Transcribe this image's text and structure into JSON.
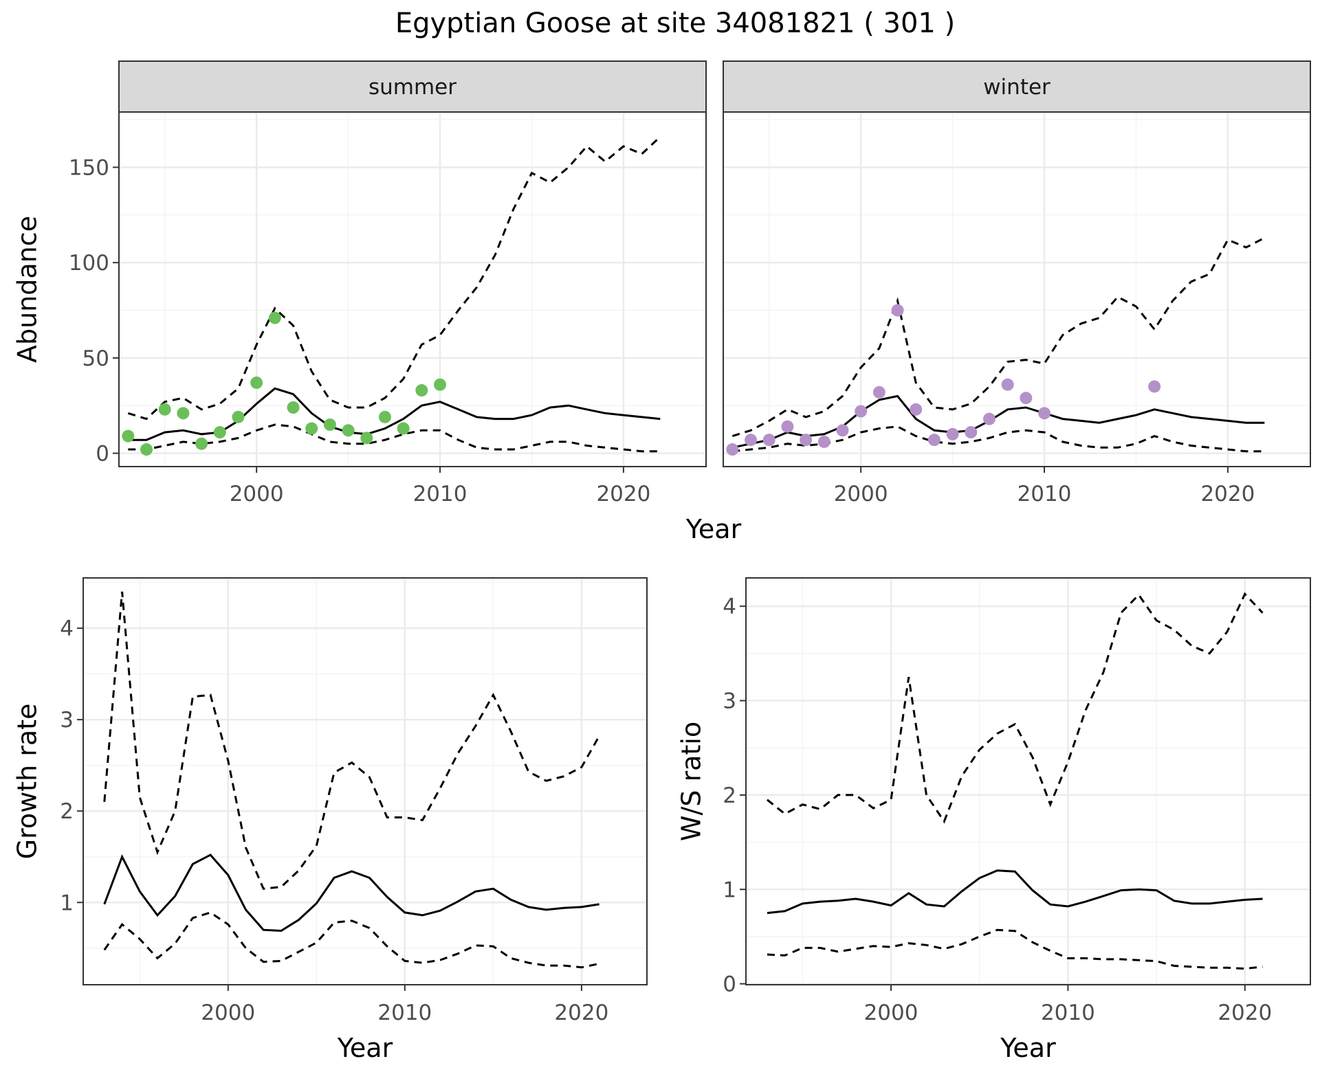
{
  "title": "Egyptian Goose at site 34081821 ( 301 )",
  "colors": {
    "summer_points": "#6bbf59",
    "winter_points": "#b591c9",
    "lines": "#000000",
    "strip_fill": "#d9d9d9",
    "grid_major": "#ebebeb",
    "grid_minor": "#f4f4f4",
    "panel_border": "#333333"
  },
  "chart_data": [
    {
      "type": "line",
      "facet": "summer",
      "xlabel": "Year",
      "ylabel": "Abundance",
      "xlim": [
        1992.5,
        2024.5
      ],
      "ylim": [
        -7,
        179
      ],
      "xticks": [
        2000,
        2010,
        2020
      ],
      "yticks": [
        0,
        50,
        100,
        150
      ],
      "grid": true,
      "x": [
        1993,
        1994,
        1995,
        1996,
        1997,
        1998,
        1999,
        2000,
        2001,
        2002,
        2003,
        2004,
        2005,
        2006,
        2007,
        2008,
        2009,
        2010,
        2011,
        2012,
        2013,
        2014,
        2015,
        2016,
        2017,
        2018,
        2019,
        2020,
        2021,
        2022
      ],
      "series": [
        {
          "role": "estimate",
          "style": "solid",
          "values": [
            7,
            7,
            11,
            12,
            10,
            11,
            17,
            26,
            34,
            31,
            21,
            14,
            11,
            10,
            13,
            18,
            25,
            27,
            23,
            19,
            18,
            18,
            20,
            24,
            25,
            23,
            21,
            20,
            19,
            18
          ]
        },
        {
          "role": "upper",
          "style": "dashed",
          "values": [
            21,
            18,
            27,
            29,
            23,
            26,
            34,
            57,
            76,
            67,
            43,
            28,
            24,
            24,
            29,
            39,
            57,
            62,
            75,
            87,
            104,
            128,
            147,
            142,
            150,
            161,
            153,
            161,
            157,
            166
          ]
        },
        {
          "role": "lower",
          "style": "dashed",
          "values": [
            2,
            2,
            4,
            6,
            5,
            6,
            8,
            12,
            15,
            14,
            10,
            6,
            5,
            5,
            7,
            10,
            12,
            12,
            7,
            3,
            2,
            2,
            4,
            6,
            6,
            4,
            3,
            2,
            1,
            1
          ]
        }
      ],
      "points": {
        "x": [
          1993,
          1994,
          1995,
          1996,
          1997,
          1998,
          1999,
          2000,
          2001,
          2002,
          2003,
          2004,
          2005,
          2006,
          2007,
          2008,
          2009,
          2010
        ],
        "y": [
          9,
          2,
          23,
          21,
          5,
          11,
          19,
          37,
          71,
          24,
          13,
          15,
          12,
          8,
          19,
          13,
          33,
          36
        ]
      }
    },
    {
      "type": "line",
      "facet": "winter",
      "xlabel": "Year",
      "ylabel": "Abundance",
      "xlim": [
        1992.5,
        2024.5
      ],
      "ylim": [
        -7,
        179
      ],
      "xticks": [
        2000,
        2010,
        2020
      ],
      "yticks": [
        0,
        50,
        100,
        150
      ],
      "grid": true,
      "x": [
        1993,
        1994,
        1995,
        1996,
        1997,
        1998,
        1999,
        2000,
        2001,
        2002,
        2003,
        2004,
        2005,
        2006,
        2007,
        2008,
        2009,
        2010,
        2011,
        2012,
        2013,
        2014,
        2015,
        2016,
        2017,
        2018,
        2019,
        2020,
        2021,
        2022
      ],
      "series": [
        {
          "role": "estimate",
          "style": "solid",
          "values": [
            3,
            5,
            7,
            11,
            9,
            10,
            14,
            22,
            28,
            30,
            18,
            12,
            11,
            12,
            17,
            23,
            24,
            21,
            18,
            17,
            16,
            18,
            20,
            23,
            21,
            19,
            18,
            17,
            16,
            16
          ]
        },
        {
          "role": "upper",
          "style": "dashed",
          "values": [
            9,
            12,
            17,
            23,
            19,
            22,
            30,
            45,
            55,
            80,
            37,
            24,
            23,
            26,
            35,
            48,
            49,
            47,
            62,
            68,
            71,
            82,
            77,
            65,
            80,
            90,
            94,
            112,
            108,
            113
          ]
        },
        {
          "role": "lower",
          "style": "dashed",
          "values": [
            1,
            2,
            3,
            5,
            4,
            5,
            7,
            11,
            13,
            14,
            9,
            6,
            5,
            6,
            8,
            11,
            12,
            11,
            6,
            4,
            3,
            3,
            5,
            9,
            6,
            4,
            3,
            2,
            1,
            1
          ]
        }
      ],
      "points": {
        "x": [
          1993,
          1994,
          1995,
          1996,
          1997,
          1998,
          1999,
          2000,
          2001,
          2002,
          2003,
          2004,
          2005,
          2006,
          2007,
          2008,
          2009,
          2010,
          2016
        ],
        "y": [
          2,
          7,
          7,
          14,
          7,
          6,
          12,
          22,
          32,
          75,
          23,
          7,
          10,
          11,
          18,
          36,
          29,
          21,
          35
        ]
      }
    },
    {
      "type": "line",
      "xlabel": "Year",
      "ylabel": "Growth rate",
      "xlim": [
        1991.8,
        2023.7
      ],
      "ylim": [
        0.1,
        4.55
      ],
      "xticks": [
        2000,
        2010,
        2020
      ],
      "yticks": [
        1,
        2,
        3,
        4
      ],
      "grid": true,
      "x": [
        1993,
        1994,
        1995,
        1996,
        1997,
        1998,
        1999,
        2000,
        2001,
        2002,
        2003,
        2004,
        2005,
        2006,
        2007,
        2008,
        2009,
        2010,
        2011,
        2012,
        2013,
        2014,
        2015,
        2016,
        2017,
        2018,
        2019,
        2020,
        2021
      ],
      "series": [
        {
          "role": "estimate",
          "style": "solid",
          "values": [
            0.98,
            1.5,
            1.12,
            0.86,
            1.07,
            1.42,
            1.52,
            1.3,
            0.92,
            0.7,
            0.69,
            0.81,
            0.99,
            1.27,
            1.34,
            1.27,
            1.06,
            0.89,
            0.86,
            0.91,
            1.01,
            1.12,
            1.15,
            1.03,
            0.95,
            0.92,
            0.94,
            0.95,
            0.98
          ]
        },
        {
          "role": "upper",
          "style": "dashed",
          "values": [
            2.1,
            4.4,
            2.15,
            1.55,
            2.0,
            3.25,
            3.27,
            2.55,
            1.6,
            1.15,
            1.17,
            1.35,
            1.62,
            2.42,
            2.53,
            2.37,
            1.93,
            1.93,
            1.9,
            2.25,
            2.63,
            2.93,
            3.27,
            2.87,
            2.43,
            2.33,
            2.38,
            2.48,
            2.82
          ]
        },
        {
          "role": "lower",
          "style": "dashed",
          "values": [
            0.48,
            0.76,
            0.6,
            0.39,
            0.55,
            0.83,
            0.89,
            0.76,
            0.5,
            0.35,
            0.36,
            0.46,
            0.56,
            0.78,
            0.8,
            0.72,
            0.52,
            0.36,
            0.34,
            0.37,
            0.44,
            0.53,
            0.52,
            0.39,
            0.34,
            0.31,
            0.31,
            0.29,
            0.33
          ]
        }
      ]
    },
    {
      "type": "line",
      "xlabel": "Year",
      "ylabel": "W/S ratio",
      "xlim": [
        1991.8,
        2023.7
      ],
      "ylim": [
        -0.01,
        4.3
      ],
      "xticks": [
        2000,
        2010,
        2020
      ],
      "yticks": [
        0,
        1,
        2,
        3,
        4
      ],
      "grid": true,
      "x": [
        1993,
        1994,
        1995,
        1996,
        1997,
        1998,
        1999,
        2000,
        2001,
        2002,
        2003,
        2004,
        2005,
        2006,
        2007,
        2008,
        2009,
        2010,
        2011,
        2012,
        2013,
        2014,
        2015,
        2016,
        2017,
        2018,
        2019,
        2020,
        2021
      ],
      "series": [
        {
          "role": "estimate",
          "style": "solid",
          "values": [
            0.75,
            0.77,
            0.85,
            0.87,
            0.88,
            0.9,
            0.87,
            0.83,
            0.96,
            0.84,
            0.82,
            0.98,
            1.12,
            1.2,
            1.19,
            0.99,
            0.84,
            0.82,
            0.87,
            0.93,
            0.99,
            1.0,
            0.99,
            0.88,
            0.85,
            0.85,
            0.87,
            0.89,
            0.9
          ]
        },
        {
          "role": "upper",
          "style": "dashed",
          "values": [
            1.95,
            1.8,
            1.9,
            1.85,
            2.0,
            2.0,
            1.86,
            1.95,
            3.25,
            2.0,
            1.72,
            2.2,
            2.48,
            2.65,
            2.75,
            2.4,
            1.9,
            2.35,
            2.9,
            3.3,
            3.93,
            4.12,
            3.85,
            3.75,
            3.58,
            3.5,
            3.73,
            4.13,
            3.93
          ]
        },
        {
          "role": "lower",
          "style": "dashed",
          "values": [
            0.31,
            0.3,
            0.38,
            0.38,
            0.34,
            0.37,
            0.4,
            0.39,
            0.43,
            0.41,
            0.37,
            0.42,
            0.5,
            0.57,
            0.56,
            0.44,
            0.35,
            0.27,
            0.27,
            0.26,
            0.26,
            0.25,
            0.24,
            0.19,
            0.18,
            0.17,
            0.17,
            0.16,
            0.18
          ]
        }
      ]
    }
  ]
}
